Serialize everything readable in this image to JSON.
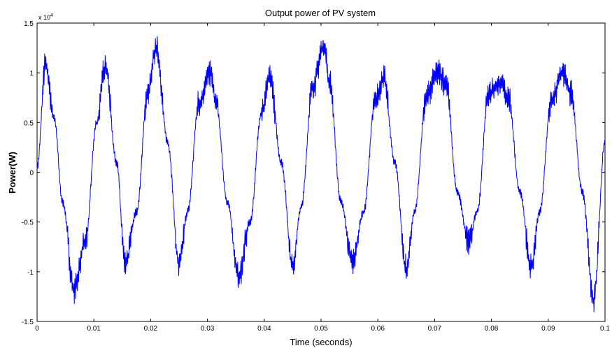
{
  "chart_data": {
    "type": "line",
    "title": "Output power of PV system",
    "xlabel": "Time (seconds)",
    "ylabel": "Power(W)",
    "y_multiplier_base": "x 10",
    "y_multiplier_exp": "4",
    "xlim": [
      0,
      0.1
    ],
    "ylim": [
      -1.5,
      1.5
    ],
    "x_ticks": [
      "0",
      "0.01",
      "0.02",
      "0.03",
      "0.04",
      "0.05",
      "0.06",
      "0.07",
      "0.08",
      "0.09",
      "0.1"
    ],
    "y_ticks": [
      "1.5",
      "1",
      "0.5",
      "0",
      "-0.5",
      "-1",
      "-1.5"
    ],
    "grid": false,
    "line_color": "#0000ff",
    "series": [
      {
        "x": [
          0,
          0.0015,
          0.003,
          0.0045,
          0.0065,
          0.0085,
          0.0105,
          0.012,
          0.014,
          0.0155,
          0.0175,
          0.0195,
          0.021,
          0.023,
          0.025,
          0.0265,
          0.0285,
          0.0305,
          0.0315,
          0.0335,
          0.0355,
          0.0375,
          0.0395,
          0.041,
          0.043,
          0.045,
          0.0465,
          0.0485,
          0.0505,
          0.0515,
          0.0535,
          0.0555,
          0.0575,
          0.0595,
          0.061,
          0.063,
          0.065,
          0.0665,
          0.0685,
          0.0705,
          0.072,
          0.074,
          0.076,
          0.0775,
          0.0795,
          0.0815,
          0.083,
          0.085,
          0.087,
          0.0885,
          0.0905,
          0.0925,
          0.094,
          0.096,
          0.098,
          0.1
        ],
        "y": [
          0.05,
          1.08,
          0.55,
          -0.3,
          -1.18,
          -0.7,
          0.5,
          1.08,
          0.1,
          -0.93,
          -0.4,
          0.8,
          1.25,
          0.3,
          -0.93,
          -0.4,
          0.7,
          1.0,
          0.7,
          -0.3,
          -1.05,
          -0.5,
          0.6,
          0.95,
          0.1,
          -0.93,
          -0.35,
          0.85,
          1.28,
          0.9,
          -0.3,
          -0.9,
          -0.4,
          0.7,
          0.95,
          0.1,
          -0.97,
          -0.4,
          0.75,
          1.0,
          0.9,
          -0.2,
          -0.7,
          -0.4,
          0.8,
          0.9,
          0.75,
          -0.2,
          -0.95,
          -0.4,
          0.7,
          1.0,
          0.8,
          -0.2,
          -1.28,
          0.3
        ]
      }
    ]
  }
}
